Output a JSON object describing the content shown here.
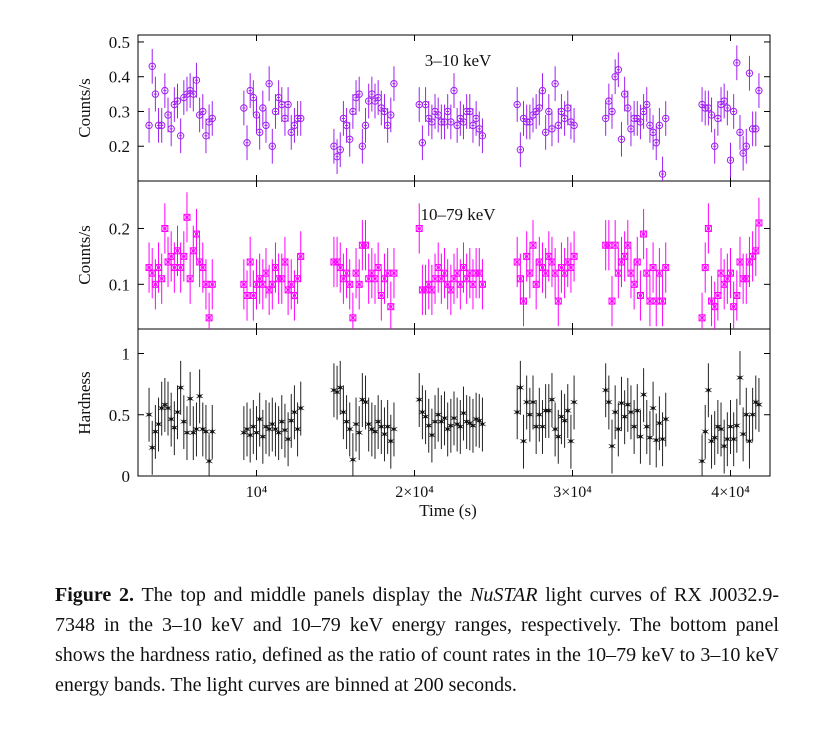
{
  "caption": {
    "label": "Figure 2.",
    "text_before": "The top and middle panels display the",
    "mission": "NuSTAR",
    "text_after": "light curves of RX J0032.9-7348 in the 3–10 keV and 10–79 keV energy ranges, respectively. The bottom panel shows the hardness ratio, defined as the ratio of count rates in the 10–79 keV to 3–10 keV energy bands. The light curves are binned at 200 seconds."
  },
  "colors": {
    "soft": "#a020f0",
    "hard": "#ff00ff",
    "hardness": "#222222",
    "axis": "#000000"
  },
  "x_axis": {
    "label": "Time (s)",
    "range": [
      2500,
      42500
    ],
    "ticks": [
      {
        "value": 10000,
        "label": "10⁴"
      },
      {
        "value": 20000,
        "label": "2×10⁴"
      },
      {
        "value": 30000,
        "label": "3×10⁴"
      },
      {
        "value": 40000,
        "label": "4×10⁴"
      }
    ]
  },
  "chart_data": [
    {
      "type": "scatter",
      "panel": "top",
      "annotation": "3–10 keV",
      "ylabel": "Counts/s",
      "ylim": [
        0.1,
        0.52
      ],
      "yticks": [
        0.2,
        0.3,
        0.4,
        0.5
      ],
      "ytick_labels": [
        "0.2",
        "0.3",
        "0.4",
        "0.5"
      ],
      "marker": "circle",
      "x": [
        3200,
        3400,
        3600,
        3800,
        4000,
        4200,
        4400,
        4600,
        4800,
        5000,
        5200,
        5400,
        5600,
        5800,
        6000,
        6200,
        6400,
        6600,
        6800,
        7000,
        7200,
        9200,
        9400,
        9600,
        9800,
        10000,
        10200,
        10400,
        10600,
        10800,
        11000,
        11200,
        11400,
        11600,
        11800,
        12000,
        12200,
        12400,
        12600,
        12800,
        14900,
        15100,
        15300,
        15500,
        15700,
        15900,
        16100,
        16300,
        16500,
        16700,
        16900,
        17100,
        17300,
        17500,
        17700,
        17900,
        18100,
        18300,
        18500,
        18700,
        20300,
        20500,
        20700,
        20900,
        21100,
        21300,
        21500,
        21700,
        21900,
        22100,
        22300,
        22500,
        22700,
        22900,
        23100,
        23300,
        23500,
        23700,
        23900,
        24100,
        24300,
        26500,
        26700,
        26900,
        27100,
        27300,
        27500,
        27700,
        27900,
        28100,
        28300,
        28500,
        28700,
        28900,
        29100,
        29300,
        29500,
        29700,
        29900,
        30100,
        32100,
        32300,
        32500,
        32700,
        32900,
        33100,
        33300,
        33500,
        33700,
        33900,
        34100,
        34300,
        34500,
        34700,
        34900,
        35100,
        35300,
        35500,
        35700,
        35900,
        38200,
        38400,
        38600,
        38800,
        39000,
        39200,
        39400,
        39600,
        39800,
        40000,
        40200,
        40400,
        40600,
        40800,
        41000,
        41200,
        41400,
        41600,
        41800
      ],
      "y": [
        0.26,
        0.43,
        0.35,
        0.26,
        0.26,
        0.36,
        0.29,
        0.25,
        0.32,
        0.33,
        0.23,
        0.34,
        0.35,
        0.36,
        0.35,
        0.39,
        0.29,
        0.3,
        0.23,
        0.27,
        0.28,
        0.31,
        0.21,
        0.36,
        0.34,
        0.29,
        0.24,
        0.31,
        0.26,
        0.38,
        0.2,
        0.3,
        0.34,
        0.32,
        0.28,
        0.32,
        0.24,
        0.26,
        0.28,
        0.28,
        0.2,
        0.17,
        0.19,
        0.28,
        0.26,
        0.22,
        0.3,
        0.34,
        0.35,
        0.2,
        0.26,
        0.33,
        0.35,
        0.33,
        0.34,
        0.31,
        0.3,
        0.26,
        0.29,
        0.38,
        0.32,
        0.21,
        0.32,
        0.28,
        0.27,
        0.3,
        0.29,
        0.27,
        0.27,
        0.3,
        0.27,
        0.36,
        0.26,
        0.28,
        0.27,
        0.3,
        0.3,
        0.26,
        0.28,
        0.25,
        0.23,
        0.32,
        0.19,
        0.28,
        0.27,
        0.27,
        0.29,
        0.3,
        0.31,
        0.36,
        0.24,
        0.3,
        0.25,
        0.38,
        0.26,
        0.3,
        0.28,
        0.31,
        0.27,
        0.26,
        0.28,
        0.33,
        0.3,
        0.4,
        0.42,
        0.22,
        0.35,
        0.31,
        0.25,
        0.28,
        0.28,
        0.27,
        0.3,
        0.32,
        0.26,
        0.24,
        0.21,
        0.26,
        0.12,
        0.28,
        0.32,
        0.31,
        0.31,
        0.29,
        0.2,
        0.28,
        0.32,
        0.33,
        0.31,
        0.16,
        0.3,
        0.44,
        0.24,
        0.18,
        0.2,
        0.41,
        0.25,
        0.25,
        0.36
      ],
      "yerr": 0.05
    },
    {
      "type": "scatter",
      "panel": "middle",
      "annotation": "10–79 keV",
      "ylabel": "Counts/s",
      "ylim": [
        0.02,
        0.285
      ],
      "yticks": [
        0.1,
        0.2
      ],
      "ytick_labels": [
        "0.1",
        "0.2"
      ],
      "marker": "square-cross",
      "x": [
        3200,
        3400,
        3600,
        3800,
        4000,
        4200,
        4400,
        4600,
        4800,
        5000,
        5200,
        5400,
        5600,
        5800,
        6000,
        6200,
        6400,
        6600,
        6800,
        7000,
        7200,
        9200,
        9400,
        9600,
        9800,
        10000,
        10200,
        10400,
        10600,
        10800,
        11000,
        11200,
        11400,
        11600,
        11800,
        12000,
        12200,
        12400,
        12600,
        12800,
        14900,
        15100,
        15300,
        15500,
        15700,
        15900,
        16100,
        16300,
        16500,
        16700,
        16900,
        17100,
        17300,
        17500,
        17700,
        17900,
        18100,
        18300,
        18500,
        18700,
        20300,
        20500,
        20700,
        20900,
        21100,
        21300,
        21500,
        21700,
        21900,
        22100,
        22300,
        22500,
        22700,
        22900,
        23100,
        23300,
        23500,
        23700,
        23900,
        24100,
        24300,
        26500,
        26700,
        26900,
        27100,
        27300,
        27500,
        27700,
        27900,
        28100,
        28300,
        28500,
        28700,
        28900,
        29100,
        29300,
        29500,
        29700,
        29900,
        30100,
        32100,
        32300,
        32500,
        32700,
        32900,
        33100,
        33300,
        33500,
        33700,
        33900,
        34100,
        34300,
        34500,
        34700,
        34900,
        35100,
        35300,
        35500,
        35700,
        35900,
        38200,
        38400,
        38600,
        38800,
        39000,
        39200,
        39400,
        39600,
        39800,
        40000,
        40200,
        40400,
        40600,
        40800,
        41000,
        41200,
        41400,
        41600,
        41800
      ],
      "y": [
        0.13,
        0.12,
        0.1,
        0.13,
        0.11,
        0.2,
        0.14,
        0.15,
        0.13,
        0.16,
        0.13,
        0.15,
        0.22,
        0.11,
        0.16,
        0.19,
        0.14,
        0.13,
        0.1,
        0.04,
        0.1,
        0.1,
        0.08,
        0.14,
        0.08,
        0.1,
        0.11,
        0.1,
        0.12,
        0.09,
        0.1,
        0.13,
        0.11,
        0.11,
        0.14,
        0.09,
        0.1,
        0.08,
        0.11,
        0.15,
        0.14,
        0.14,
        0.13,
        0.11,
        0.12,
        0.1,
        0.04,
        0.12,
        0.1,
        0.17,
        0.17,
        0.11,
        0.12,
        0.11,
        0.13,
        0.08,
        0.11,
        0.12,
        0.06,
        0.12,
        0.2,
        0.09,
        0.09,
        0.1,
        0.09,
        0.11,
        0.13,
        0.11,
        0.12,
        0.1,
        0.09,
        0.11,
        0.12,
        0.1,
        0.13,
        0.11,
        0.12,
        0.1,
        0.12,
        0.12,
        0.1,
        0.14,
        0.11,
        0.07,
        0.15,
        0.12,
        0.17,
        0.1,
        0.14,
        0.13,
        0.12,
        0.15,
        0.14,
        0.12,
        0.07,
        0.13,
        0.12,
        0.14,
        0.13,
        0.15,
        0.17,
        0.17,
        0.07,
        0.17,
        0.12,
        0.14,
        0.15,
        0.17,
        0.12,
        0.1,
        0.14,
        0.08,
        0.19,
        0.12,
        0.07,
        0.13,
        0.07,
        0.12,
        0.07,
        0.13,
        0.04,
        0.13,
        0.2,
        0.07,
        0.06,
        0.08,
        0.12,
        0.1,
        0.11,
        0.12,
        0.06,
        0.08,
        0.14,
        0.11,
        0.11,
        0.14,
        0.15,
        0.16,
        0.21
      ],
      "yerr": 0.045
    },
    {
      "type": "scatter",
      "panel": "bottom",
      "ylabel": "Hardness",
      "ylim": [
        0,
        1.2
      ],
      "yticks": [
        0,
        0.5,
        1
      ],
      "ytick_labels": [
        "0",
        "0.5",
        "1"
      ],
      "marker": "star",
      "x": [
        3200,
        3400,
        3600,
        3800,
        4000,
        4200,
        4400,
        4600,
        4800,
        5000,
        5200,
        5400,
        5600,
        5800,
        6000,
        6200,
        6400,
        6600,
        6800,
        7000,
        7200,
        9200,
        9400,
        9600,
        9800,
        10000,
        10200,
        10400,
        10600,
        10800,
        11000,
        11200,
        11400,
        11600,
        11800,
        12000,
        12200,
        12400,
        12600,
        12800,
        14900,
        15100,
        15300,
        15500,
        15700,
        15900,
        16100,
        16300,
        16500,
        16700,
        16900,
        17100,
        17300,
        17500,
        17700,
        17900,
        18100,
        18300,
        18500,
        18700,
        20300,
        20500,
        20700,
        20900,
        21100,
        21300,
        21500,
        21700,
        21900,
        22100,
        22300,
        22500,
        22700,
        22900,
        23100,
        23300,
        23500,
        23700,
        23900,
        24100,
        24300,
        26500,
        26700,
        26900,
        27100,
        27300,
        27500,
        27700,
        27900,
        28100,
        28300,
        28500,
        28700,
        28900,
        29100,
        29300,
        29500,
        29700,
        29900,
        30100,
        32100,
        32300,
        32500,
        32700,
        32900,
        33100,
        33300,
        33500,
        33700,
        33900,
        34100,
        34300,
        34500,
        34700,
        34900,
        35100,
        35300,
        35500,
        35700,
        35900,
        38200,
        38400,
        38600,
        38800,
        39000,
        39200,
        39400,
        39600,
        39800,
        40000,
        40200,
        40400,
        40600,
        40800,
        41000,
        41200,
        41400,
        41600,
        41800
      ],
      "y": [
        0.5,
        0.23,
        0.36,
        0.42,
        0.55,
        0.58,
        0.55,
        0.46,
        0.39,
        0.52,
        0.72,
        0.44,
        0.35,
        0.63,
        0.35,
        0.38,
        0.65,
        0.38,
        0.36,
        0.12,
        0.36,
        0.35,
        0.38,
        0.33,
        0.4,
        0.35,
        0.46,
        0.32,
        0.4,
        0.38,
        0.42,
        0.38,
        0.35,
        0.44,
        0.37,
        0.3,
        0.45,
        0.52,
        0.38,
        0.55,
        0.7,
        0.68,
        0.72,
        0.52,
        0.44,
        0.38,
        0.13,
        0.42,
        0.35,
        0.62,
        0.6,
        0.42,
        0.38,
        0.36,
        0.44,
        0.4,
        0.34,
        0.4,
        0.28,
        0.38,
        0.62,
        0.52,
        0.48,
        0.41,
        0.33,
        0.44,
        0.5,
        0.44,
        0.47,
        0.38,
        0.41,
        0.47,
        0.42,
        0.4,
        0.51,
        0.44,
        0.43,
        0.41,
        0.46,
        0.45,
        0.42,
        0.52,
        0.72,
        0.28,
        0.6,
        0.5,
        0.6,
        0.4,
        0.5,
        0.4,
        0.53,
        0.53,
        0.62,
        0.38,
        0.32,
        0.48,
        0.45,
        0.53,
        0.28,
        0.6,
        0.7,
        0.6,
        0.24,
        0.52,
        0.38,
        0.59,
        0.48,
        0.58,
        0.52,
        0.4,
        0.53,
        0.32,
        0.66,
        0.4,
        0.31,
        0.55,
        0.29,
        0.43,
        0.3,
        0.46,
        0.12,
        0.36,
        0.7,
        0.28,
        0.31,
        0.4,
        0.38,
        0.24,
        0.3,
        0.4,
        0.3,
        0.41,
        0.8,
        0.34,
        0.5,
        0.28,
        0.5,
        0.6,
        0.58
      ],
      "yerr": 0.22
    }
  ]
}
